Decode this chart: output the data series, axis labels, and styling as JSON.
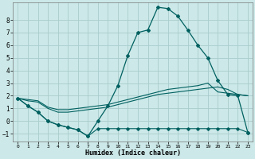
{
  "xlabel": "Humidex (Indice chaleur)",
  "bg_color": "#cce8e8",
  "grid_color": "#aacccc",
  "line_color": "#006060",
  "xlim": [
    -0.5,
    23.5
  ],
  "ylim": [
    -1.6,
    9.4
  ],
  "yticks": [
    -1,
    0,
    1,
    2,
    3,
    4,
    5,
    6,
    7,
    8
  ],
  "xticks": [
    0,
    1,
    2,
    3,
    4,
    5,
    6,
    7,
    8,
    9,
    10,
    11,
    12,
    13,
    14,
    15,
    16,
    17,
    18,
    19,
    20,
    21,
    22,
    23
  ],
  "line1_x": [
    0,
    1,
    2,
    3,
    4,
    5,
    6,
    7,
    8,
    9,
    10,
    11,
    12,
    13,
    14,
    15,
    16,
    17,
    18,
    19,
    20,
    21,
    22,
    23
  ],
  "line1_y": [
    1.8,
    1.2,
    0.7,
    0.0,
    -0.3,
    -0.5,
    -0.7,
    -1.2,
    0.0,
    1.2,
    2.8,
    5.2,
    7.0,
    7.2,
    9.0,
    8.9,
    8.3,
    7.2,
    6.0,
    5.0,
    3.2,
    2.1,
    2.0,
    -0.9
  ],
  "line2_x": [
    0,
    1,
    2,
    3,
    4,
    5,
    6,
    7,
    8,
    9,
    10,
    11,
    12,
    13,
    14,
    15,
    16,
    17,
    18,
    19,
    20,
    21,
    22,
    23
  ],
  "line2_y": [
    1.8,
    1.2,
    0.7,
    0.0,
    -0.3,
    -0.5,
    -0.7,
    -1.2,
    -0.6,
    -0.6,
    -0.6,
    -0.6,
    -0.6,
    -0.6,
    -0.6,
    -0.6,
    -0.6,
    -0.6,
    -0.6,
    -0.6,
    -0.6,
    -0.6,
    -0.6,
    -0.9
  ],
  "line3_x": [
    0,
    1,
    2,
    3,
    4,
    5,
    6,
    7,
    8,
    9,
    10,
    11,
    12,
    13,
    14,
    15,
    16,
    17,
    18,
    19,
    20,
    21,
    22,
    23
  ],
  "line3_y": [
    1.8,
    1.6,
    1.5,
    1.0,
    0.7,
    0.7,
    0.8,
    0.9,
    1.0,
    1.1,
    1.3,
    1.5,
    1.7,
    1.9,
    2.1,
    2.2,
    2.3,
    2.4,
    2.5,
    2.6,
    2.7,
    2.5,
    2.1,
    2.0
  ],
  "line4_x": [
    0,
    1,
    2,
    3,
    4,
    5,
    6,
    7,
    8,
    9,
    10,
    11,
    12,
    13,
    14,
    15,
    16,
    17,
    18,
    19,
    20,
    21,
    22,
    23
  ],
  "line4_y": [
    1.8,
    1.7,
    1.6,
    1.1,
    0.9,
    0.9,
    1.0,
    1.1,
    1.2,
    1.3,
    1.5,
    1.7,
    1.9,
    2.1,
    2.3,
    2.5,
    2.6,
    2.7,
    2.8,
    3.0,
    2.3,
    2.2,
    2.1,
    2.0
  ]
}
